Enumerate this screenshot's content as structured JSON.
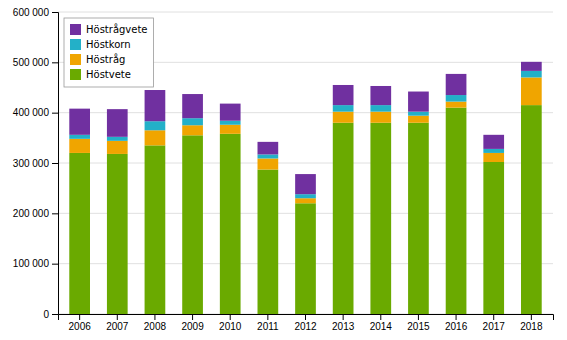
{
  "chart_data": {
    "type": "bar",
    "stacked": true,
    "categories": [
      "2006",
      "2007",
      "2008",
      "2009",
      "2010",
      "2011",
      "2012",
      "2013",
      "2014",
      "2015",
      "2016",
      "2017",
      "2018"
    ],
    "series": [
      {
        "name": "Höstvete",
        "color": "#6aaa00",
        "values": [
          320000,
          318000,
          335000,
          355000,
          358000,
          287000,
          220000,
          380000,
          380000,
          380000,
          410000,
          302000,
          415000
        ]
      },
      {
        "name": "Höstråg",
        "color": "#f0a500",
        "values": [
          28000,
          26000,
          30000,
          20000,
          18000,
          22000,
          10000,
          22000,
          22000,
          14000,
          12000,
          18000,
          55000
        ]
      },
      {
        "name": "Höstkorn",
        "color": "#23b0c8",
        "values": [
          8000,
          8000,
          18000,
          14000,
          8000,
          8000,
          8000,
          13000,
          13000,
          8000,
          13000,
          8000,
          13000
        ]
      },
      {
        "name": "Höstrågvete",
        "color": "#7030a0",
        "values": [
          52000,
          55000,
          62000,
          48000,
          34000,
          25000,
          40000,
          40000,
          38000,
          40000,
          42000,
          28000,
          18000
        ]
      }
    ],
    "ylim": [
      0,
      600000
    ],
    "yticks": [
      0,
      {
        "value": 100000,
        "label": "100 000"
      },
      {
        "value": 200000,
        "label": "200 000"
      },
      {
        "value": 300000,
        "label": "300 000"
      },
      {
        "value": 400000,
        "label": "400 000"
      },
      {
        "value": 500000,
        "label": "500 000"
      },
      {
        "value": 600000,
        "label": "600 000"
      }
    ],
    "grid": true,
    "legend": "top-left"
  }
}
